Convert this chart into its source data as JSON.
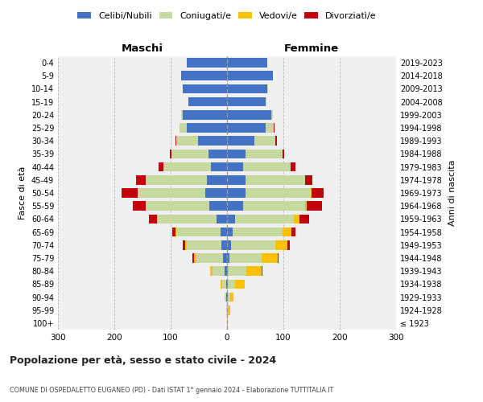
{
  "age_groups": [
    "100+",
    "95-99",
    "90-94",
    "85-89",
    "80-84",
    "75-79",
    "70-74",
    "65-69",
    "60-64",
    "55-59",
    "50-54",
    "45-49",
    "40-44",
    "35-39",
    "30-34",
    "25-29",
    "20-24",
    "15-19",
    "10-14",
    "5-9",
    "0-4"
  ],
  "birth_years": [
    "≤ 1923",
    "1924-1928",
    "1929-1933",
    "1934-1938",
    "1939-1943",
    "1944-1948",
    "1949-1953",
    "1954-1958",
    "1959-1963",
    "1964-1968",
    "1969-1973",
    "1974-1978",
    "1979-1983",
    "1984-1988",
    "1989-1993",
    "1994-1998",
    "1999-2003",
    "2004-2008",
    "2009-2013",
    "2014-2018",
    "2019-2023"
  ],
  "maschi": {
    "celibe": [
      0,
      0,
      1,
      2,
      4,
      7,
      10,
      12,
      18,
      32,
      38,
      36,
      28,
      33,
      52,
      72,
      78,
      68,
      78,
      82,
      72
    ],
    "coniugato": [
      0,
      1,
      3,
      7,
      22,
      48,
      62,
      78,
      105,
      112,
      120,
      108,
      85,
      65,
      38,
      12,
      4,
      1,
      1,
      0,
      0
    ],
    "vedovo": [
      0,
      0,
      1,
      3,
      4,
      4,
      3,
      2,
      1,
      1,
      1,
      0,
      0,
      0,
      0,
      0,
      0,
      0,
      0,
      0,
      0
    ],
    "divorziato": [
      0,
      0,
      0,
      0,
      0,
      2,
      3,
      5,
      14,
      22,
      28,
      18,
      9,
      4,
      2,
      1,
      0,
      0,
      0,
      0,
      0
    ]
  },
  "femmine": {
    "nubile": [
      0,
      0,
      1,
      1,
      2,
      4,
      7,
      10,
      14,
      28,
      33,
      33,
      28,
      33,
      48,
      68,
      78,
      68,
      72,
      82,
      72
    ],
    "coniugato": [
      0,
      2,
      4,
      13,
      32,
      58,
      78,
      88,
      105,
      110,
      115,
      105,
      85,
      65,
      38,
      15,
      4,
      2,
      1,
      0,
      0
    ],
    "vedovo": [
      1,
      3,
      7,
      18,
      28,
      28,
      22,
      16,
      9,
      4,
      2,
      1,
      0,
      0,
      0,
      0,
      0,
      0,
      0,
      0,
      0
    ],
    "divorziato": [
      0,
      0,
      0,
      0,
      1,
      2,
      4,
      7,
      18,
      27,
      22,
      13,
      9,
      4,
      2,
      1,
      0,
      0,
      0,
      0,
      0
    ]
  },
  "colors": {
    "celibe": "#4472c4",
    "coniugato": "#c5d9a0",
    "vedovo": "#ffc000",
    "divorziato": "#c0000c"
  },
  "xlim": 300,
  "xticks": [
    -300,
    -200,
    -100,
    0,
    100,
    200,
    300
  ],
  "title": "Popolazione per età, sesso e stato civile - 2024",
  "subtitle": "COMUNE DI OSPEDALETTO EUGANEO (PD) - Dati ISTAT 1° gennaio 2024 - Elaborazione TUTTITALIA.IT",
  "label_maschi": "Maschi",
  "label_femmine": "Femmine",
  "ylabel": "Fasce di età",
  "ylabel_right": "Anni di nascita",
  "legend_labels": [
    "Celibi/Nubili",
    "Coniugati/e",
    "Vedovi/e",
    "Divorziatì/e"
  ],
  "plot_bg": "#f0f0f0"
}
